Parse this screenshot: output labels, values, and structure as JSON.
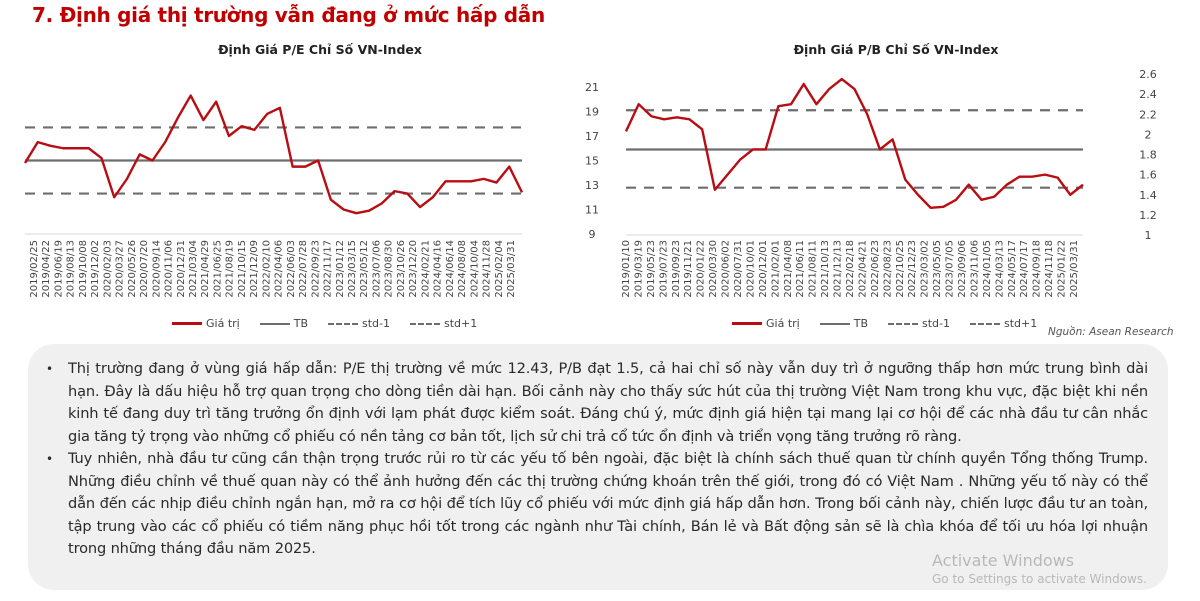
{
  "section_title": "7. Định giá thị trường vẫn đang ở mức hấp dẫn",
  "legend": {
    "value": "Giá trị",
    "mean": "TB",
    "std_minus": "std-1",
    "std_plus": "std+1"
  },
  "source": "Nguồn: Asean Research",
  "colors": {
    "accent": "#c00000",
    "series": "#b80d12",
    "reference": "#6d6d6d"
  },
  "chart_data": [
    {
      "type": "line",
      "title": "Định Giá P/E Chỉ Số VN-Index",
      "ylim": [
        9,
        21
      ],
      "yticks": [
        9,
        11,
        13,
        15,
        17,
        19,
        21
      ],
      "y_axis_side": "right",
      "grid": false,
      "legend_placement": "bottom",
      "categories": [
        "2019/02/25",
        "2019/04/22",
        "2019/06/19",
        "2019/08/13",
        "2019/10/08",
        "2019/12/02",
        "2020/02/03",
        "2020/03/27",
        "2020/05/26",
        "2020/07/20",
        "2020/09/14",
        "2020/11/06",
        "2020/12/31",
        "2021/03/04",
        "2021/04/29",
        "2021/06/25",
        "2021/08/19",
        "2021/10/15",
        "2021/12/09",
        "2022/02/10",
        "2022/04/06",
        "2022/06/03",
        "2022/07/28",
        "2022/09/23",
        "2022/11/17",
        "2023/01/12",
        "2023/03/15",
        "2023/05/12",
        "2023/07/06",
        "2023/08/30",
        "2023/10/26",
        "2023/12/20",
        "2024/02/21",
        "2024/04/16",
        "2024/06/14",
        "2024/08/08",
        "2024/10/04",
        "2024/11/28",
        "2025/02/04",
        "2025/03/31"
      ],
      "series": [
        {
          "name": "Giá trị",
          "values": [
            14.8,
            16.5,
            16.2,
            16.0,
            16.0,
            16.0,
            15.2,
            12.0,
            13.5,
            15.5,
            15.0,
            16.5,
            18.5,
            20.3,
            18.3,
            19.8,
            17.0,
            17.8,
            17.5,
            18.8,
            19.3,
            14.5,
            14.5,
            15.0,
            11.8,
            11.0,
            10.7,
            10.9,
            11.5,
            12.5,
            12.3,
            11.2,
            12.0,
            13.3,
            13.3,
            13.3,
            13.5,
            13.2,
            14.5,
            12.4
          ]
        },
        {
          "name": "TB",
          "constant": 15.0
        },
        {
          "name": "std-1",
          "constant": 12.3
        },
        {
          "name": "std+1",
          "constant": 17.7
        }
      ]
    },
    {
      "type": "line",
      "title": "Định Giá P/B Chỉ Số VN-Index",
      "ylim": [
        1,
        2.6
      ],
      "yticks": [
        1,
        1.2,
        1.4,
        1.6,
        1.8,
        2,
        2.2,
        2.4,
        2.6
      ],
      "y_axis_side": "right",
      "grid": false,
      "legend_placement": "bottom",
      "categories": [
        "2019/01/10",
        "2019/03/19",
        "2019/05/23",
        "2019/07/23",
        "2019/09/23",
        "2019/11/21",
        "2020/01/22",
        "2020/03/30",
        "2020/06/02",
        "2020/07/31",
        "2020/10/01",
        "2020/12/01",
        "2021/02/01",
        "2021/04/08",
        "2021/06/11",
        "2021/08/11",
        "2021/10/13",
        "2021/12/13",
        "2022/02/18",
        "2022/04/21",
        "2022/06/23",
        "2022/08/23",
        "2022/10/25",
        "2022/12/23",
        "2023/03/02",
        "2023/05/05",
        "2023/07/05",
        "2023/09/06",
        "2023/11/06",
        "2024/01/05",
        "2024/03/13",
        "2024/05/17",
        "2024/07/17",
        "2024/09/18",
        "2024/11/18",
        "2025/01/22",
        "2025/03/31"
      ],
      "series": [
        {
          "name": "Giá trị",
          "values": [
            2.03,
            2.3,
            2.18,
            2.15,
            2.17,
            2.15,
            2.05,
            1.45,
            1.6,
            1.75,
            1.85,
            1.85,
            2.28,
            2.3,
            2.5,
            2.3,
            2.45,
            2.55,
            2.45,
            2.2,
            1.85,
            1.95,
            1.55,
            1.4,
            1.27,
            1.28,
            1.35,
            1.5,
            1.35,
            1.38,
            1.5,
            1.58,
            1.58,
            1.6,
            1.57,
            1.4,
            1.5
          ]
        },
        {
          "name": "TB",
          "constant": 1.85
        },
        {
          "name": "std-1",
          "constant": 1.47
        },
        {
          "name": "std+1",
          "constant": 2.24
        }
      ]
    }
  ],
  "paragraphs": [
    "Thị trường đang ở vùng giá hấp dẫn: P/E thị trường về mức 12.43, P/B đạt 1.5, cả hai chỉ số này vẫn duy trì ở ngưỡng thấp hơn mức trung bình dài hạn. Đây là dấu hiệu hỗ trợ quan trọng cho dòng tiền dài hạn. Bối cảnh này cho thấy sức hút của thị trường Việt Nam trong khu vực, đặc biệt khi nền kinh tế đang duy trì tăng trưởng ổn định với lạm phát được kiểm soát. Đáng chú ý, mức định giá hiện tại mang lại cơ hội để các nhà đầu tư cân nhắc gia tăng tỷ trọng vào những cổ phiếu có nền tảng cơ bản tốt, lịch sử chi trả cổ tức ổn định và triển vọng tăng trưởng rõ ràng.",
    "Tuy nhiên, nhà đầu tư cũng cần thận trọng trước rủi ro từ các yếu tố bên ngoài, đặc biệt là chính sách thuế quan từ chính quyền Tổng thống Trump. Những điều chỉnh về thuế quan này có thể ảnh hưởng đến các thị trường chứng khoán trên thế giới, trong đó có Việt Nam . Những yếu tố này có thể dẫn đến các nhịp điều chỉnh ngắn hạn, mở ra cơ hội để tích lũy cổ phiếu với mức định giá hấp dẫn hơn. Trong bối cảnh này, chiến lược đầu tư an toàn, tập trung vào các cổ phiếu có tiềm năng phục hồi tốt trong các ngành như Tài chính, Bán lẻ và Bất động sản sẽ là chìa khóa để tối ưu hóa lợi nhuận trong những tháng đầu năm 2025."
  ],
  "watermark": {
    "line1": "Activate Windows",
    "line2": "Go to Settings to activate Windows."
  }
}
